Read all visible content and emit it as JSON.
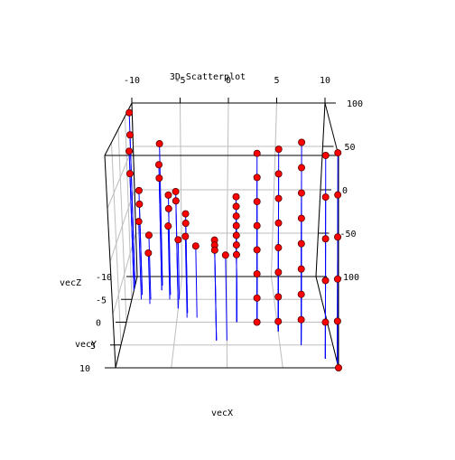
{
  "chart_data": {
    "type": "scatter",
    "title": "3D Scatterplot",
    "xlabel": "vecX",
    "ylabel": "vecY",
    "zlabel": "vecZ",
    "x_ticks": [
      "-10",
      "-5",
      "0",
      "5",
      "10"
    ],
    "y_ticks": [
      "10",
      "5",
      "0",
      "-5",
      "-10"
    ],
    "z_ticks": [
      "100",
      "50",
      "0",
      "-50",
      "-100"
    ],
    "xlim": [
      -10,
      10
    ],
    "ylim": [
      -10,
      10
    ],
    "zlim": [
      -100,
      100
    ],
    "grid": true,
    "point_color": "#ff0000",
    "drop_line_color": "#0000ff",
    "points": [
      {
        "x": -10,
        "y": -8,
        "z": 95
      },
      {
        "x": -10,
        "y": -8,
        "z": 70
      },
      {
        "x": -10,
        "y": -7,
        "z": 55
      },
      {
        "x": -10,
        "y": -7,
        "z": 30
      },
      {
        "x": -9,
        "y": -6,
        "z": 15
      },
      {
        "x": -9,
        "y": -6,
        "z": 0
      },
      {
        "x": -9,
        "y": -5,
        "z": -15
      },
      {
        "x": -8,
        "y": -5,
        "z": -30
      },
      {
        "x": -8,
        "y": -4,
        "z": -45
      },
      {
        "x": -7,
        "y": -8,
        "z": 60
      },
      {
        "x": -7,
        "y": -7,
        "z": 40
      },
      {
        "x": -7,
        "y": -7,
        "z": 25
      },
      {
        "x": -6,
        "y": -6,
        "z": 10
      },
      {
        "x": -6,
        "y": -6,
        "z": -5
      },
      {
        "x": -6,
        "y": -5,
        "z": -20
      },
      {
        "x": -5,
        "y": -5,
        "z": -35
      },
      {
        "x": -5,
        "y": -3,
        "z": 25
      },
      {
        "x": -5,
        "y": -3,
        "z": 15
      },
      {
        "x": -4,
        "y": -2,
        "z": 5
      },
      {
        "x": -4,
        "y": -2,
        "z": -5
      },
      {
        "x": -4,
        "y": -1,
        "z": -15
      },
      {
        "x": -3,
        "y": -1,
        "z": -25
      },
      {
        "x": -1,
        "y": 4,
        "z": 0
      },
      {
        "x": -1,
        "y": 4,
        "z": -5
      },
      {
        "x": -1,
        "y": 4,
        "z": -10
      },
      {
        "x": 0,
        "y": 4,
        "z": -15
      },
      {
        "x": 1,
        "y": 0,
        "z": 30
      },
      {
        "x": 1,
        "y": 0,
        "z": 20
      },
      {
        "x": 1,
        "y": 0,
        "z": 10
      },
      {
        "x": 1,
        "y": 0,
        "z": 0
      },
      {
        "x": 1,
        "y": 0,
        "z": -10
      },
      {
        "x": 1,
        "y": 0,
        "z": -20
      },
      {
        "x": 1,
        "y": 0,
        "z": -30
      },
      {
        "x": 3,
        "y": 0,
        "z": 75
      },
      {
        "x": 3,
        "y": 0,
        "z": 50
      },
      {
        "x": 3,
        "y": 0,
        "z": 25
      },
      {
        "x": 3,
        "y": 0,
        "z": 0
      },
      {
        "x": 3,
        "y": 0,
        "z": -25
      },
      {
        "x": 3,
        "y": 0,
        "z": -50
      },
      {
        "x": 3,
        "y": 0,
        "z": -75
      },
      {
        "x": 3,
        "y": 0,
        "z": -100
      },
      {
        "x": 5,
        "y": 2,
        "z": 85
      },
      {
        "x": 5,
        "y": 2,
        "z": 60
      },
      {
        "x": 5,
        "y": 2,
        "z": 35
      },
      {
        "x": 5,
        "y": 2,
        "z": 10
      },
      {
        "x": 5,
        "y": 2,
        "z": -15
      },
      {
        "x": 5,
        "y": 2,
        "z": -40
      },
      {
        "x": 5,
        "y": 2,
        "z": -65
      },
      {
        "x": 5,
        "y": 2,
        "z": -90
      },
      {
        "x": 7,
        "y": 5,
        "z": 100
      },
      {
        "x": 7,
        "y": 5,
        "z": 75
      },
      {
        "x": 7,
        "y": 5,
        "z": 50
      },
      {
        "x": 7,
        "y": 5,
        "z": 25
      },
      {
        "x": 7,
        "y": 5,
        "z": 0
      },
      {
        "x": 7,
        "y": 5,
        "z": -25
      },
      {
        "x": 7,
        "y": 5,
        "z": -50
      },
      {
        "x": 7,
        "y": 5,
        "z": -75
      },
      {
        "x": 9,
        "y": 8,
        "z": 95
      },
      {
        "x": 9,
        "y": 8,
        "z": 55
      },
      {
        "x": 9,
        "y": 8,
        "z": 15
      },
      {
        "x": 9,
        "y": 8,
        "z": -25
      },
      {
        "x": 9,
        "y": 8,
        "z": -65
      },
      {
        "x": 10,
        "y": 9,
        "z": 100
      },
      {
        "x": 10,
        "y": 9,
        "z": 60
      },
      {
        "x": 10,
        "y": 9,
        "z": 20
      },
      {
        "x": 10,
        "y": 9,
        "z": -20
      },
      {
        "x": 10,
        "y": 9,
        "z": -60
      },
      {
        "x": 10,
        "y": 10,
        "z": -100
      }
    ]
  }
}
